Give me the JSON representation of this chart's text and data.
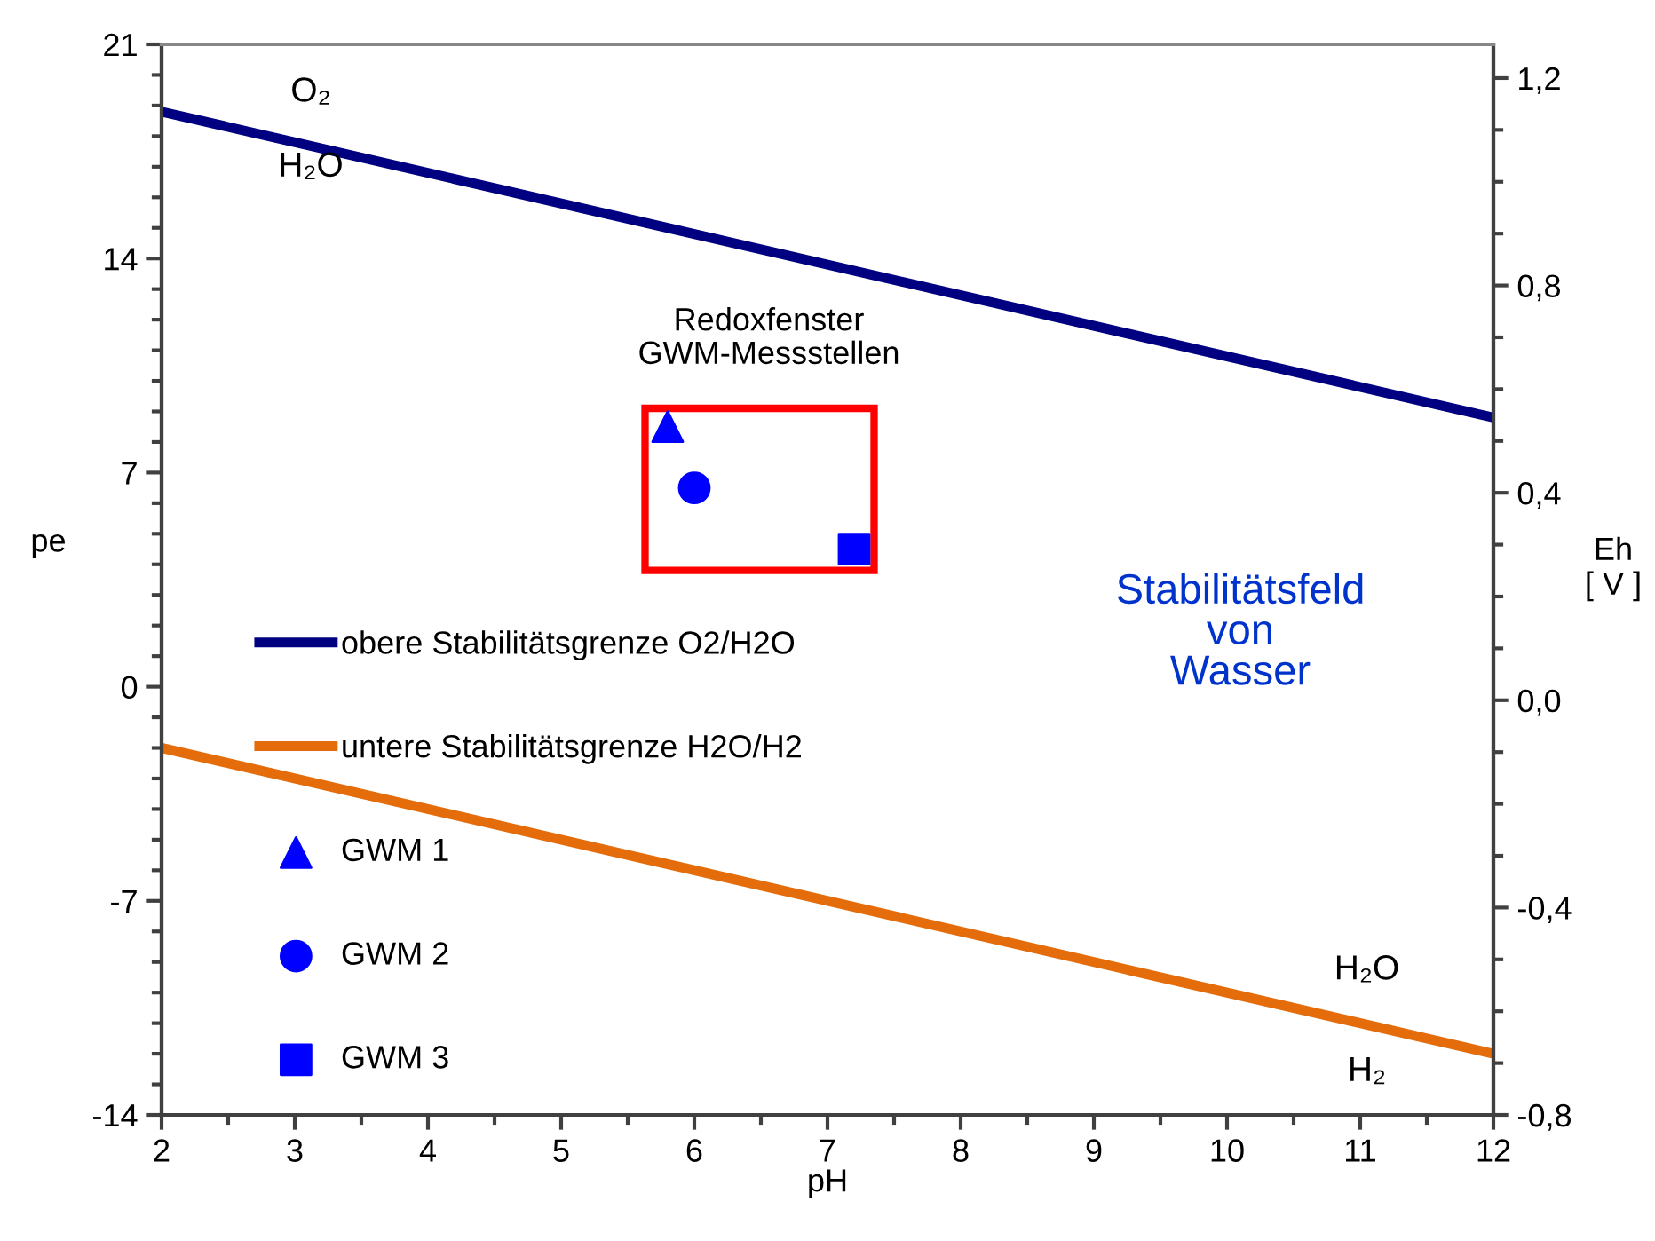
{
  "chart_data": {
    "type": "line",
    "xlabel": "pH",
    "ylabel": "pe",
    "y2label": "Eh\n[ V ]",
    "x": [
      2,
      12
    ],
    "series": [
      {
        "name": "obere Stabilitätsgrenze O2/H2O",
        "color": "#000080",
        "values": [
          18.8,
          8.8
        ]
      },
      {
        "name": "untere Stabilitätsgrenze H2O/H2",
        "color": "#e46c0a",
        "values": [
          -2,
          -12
        ]
      },
      {
        "type": "scatter",
        "name": "GWM 1",
        "color": "#0000ff",
        "marker": "triangle",
        "x": [
          5.8
        ],
        "values": [
          8.5
        ]
      },
      {
        "type": "scatter",
        "name": "GWM 2",
        "color": "#0000ff",
        "marker": "circle",
        "x": [
          6.0
        ],
        "values": [
          6.5
        ]
      },
      {
        "type": "scatter",
        "name": "GWM 3",
        "color": "#0000ff",
        "marker": "square",
        "x": [
          7.2
        ],
        "values": [
          4.5
        ]
      }
    ],
    "xlim": [
      2,
      12
    ],
    "xticks": [
      2,
      3,
      4,
      5,
      6,
      7,
      8,
      9,
      10,
      11,
      12
    ],
    "ylim": [
      -14,
      21
    ],
    "yticks": [
      -14,
      -7,
      0,
      7,
      14,
      21
    ],
    "y2lim": [
      -0.8,
      1.265
    ],
    "y2ticks": [
      {
        "value": -0.8,
        "label": "-0,8"
      },
      {
        "value": -0.4,
        "label": "-0,4"
      },
      {
        "value": 0.0,
        "label": "0,0"
      },
      {
        "value": 0.4,
        "label": "0,4"
      },
      {
        "value": 0.8,
        "label": "0,8"
      },
      {
        "value": 1.2,
        "label": "1,2"
      }
    ],
    "annotations": [
      "O₂",
      "H₂O",
      "H₂O",
      "H₂",
      "Redoxfenster\nGWM-Messstellen",
      "Stabilitätsfeld\nvon\nWasser"
    ],
    "legend": "left",
    "grid": false
  }
}
